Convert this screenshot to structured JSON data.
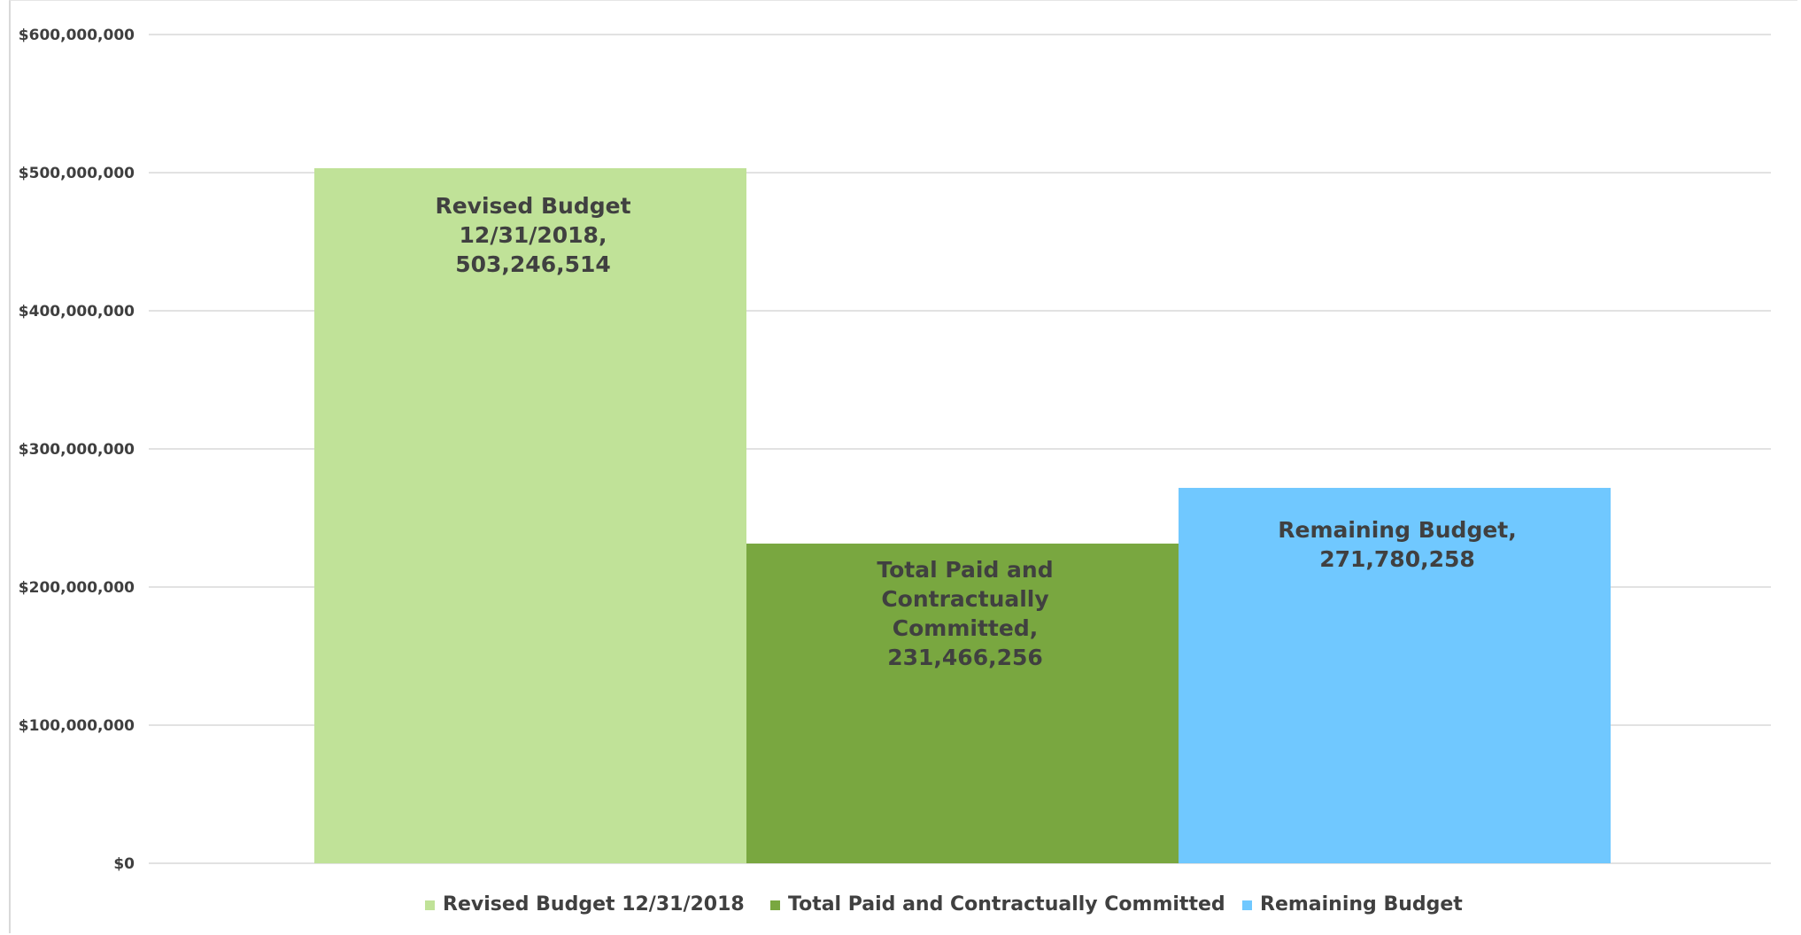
{
  "chart_data": {
    "type": "bar",
    "title": "",
    "xlabel": "",
    "ylabel": "",
    "ylim": [
      0,
      600000000
    ],
    "y_ticks": [
      {
        "value": 0,
        "label": "$0"
      },
      {
        "value": 100000000,
        "label": "$100,000,000"
      },
      {
        "value": 200000000,
        "label": "$200,000,000"
      },
      {
        "value": 300000000,
        "label": "$300,000,000"
      },
      {
        "value": 400000000,
        "label": "$400,000,000"
      },
      {
        "value": 500000000,
        "label": "$500,000,000"
      },
      {
        "value": 600000000,
        "label": "$600,000,000"
      }
    ],
    "grid": true,
    "legend_position": "bottom",
    "series": [
      {
        "name": "Revised Budget 12/31/2018",
        "value": 503246514,
        "color": "#c0e298",
        "data_label_lines": [
          "Revised Budget",
          "12/31/2018,",
          "503,246,514"
        ]
      },
      {
        "name": "Total Paid and Contractually Committed",
        "value": 231466256,
        "color": "#79a740",
        "data_label_lines": [
          "Total Paid and",
          "Contractually",
          "Committed,",
          "231,466,256"
        ]
      },
      {
        "name": "Remaining Budget",
        "value": 271780258,
        "color": "#70c8ff",
        "data_label_lines": [
          "Remaining Budget,",
          "271,780,258"
        ]
      }
    ]
  }
}
